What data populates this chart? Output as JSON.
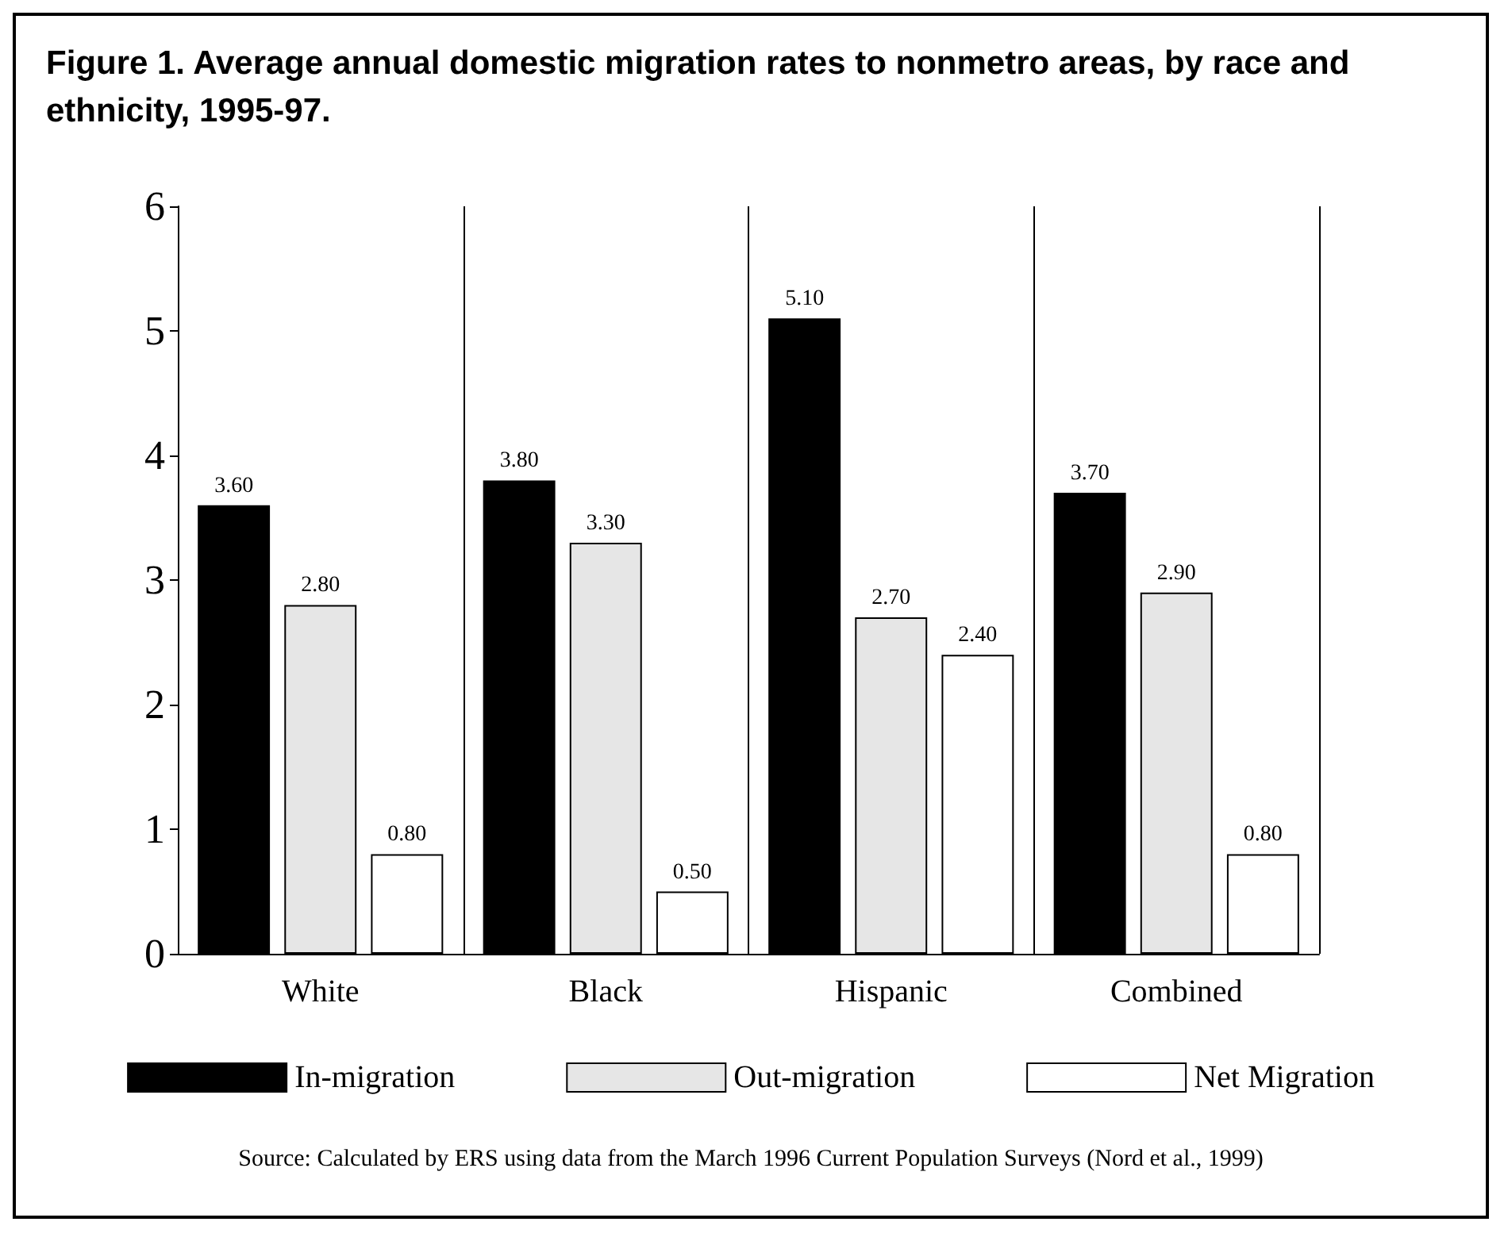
{
  "chart_data": {
    "type": "bar",
    "title": "Figure 1. Average annual domestic migration rates to nonmetro areas, by race and ethnicity, 1995-97.",
    "categories": [
      "White",
      "Black",
      "Hispanic",
      "Combined"
    ],
    "series": [
      {
        "name": "In-migration",
        "color": "#000000",
        "values": [
          3.6,
          3.8,
          5.1,
          3.7
        ],
        "value_labels": [
          "3.60",
          "3.80",
          "5.10",
          "3.70"
        ]
      },
      {
        "name": "Out-migration",
        "color": "#e6e6e6",
        "values": [
          2.8,
          3.3,
          2.7,
          2.9
        ],
        "value_labels": [
          "2.80",
          "3.30",
          "2.70",
          "2.90"
        ]
      },
      {
        "name": "Net Migration",
        "color": "#ffffff",
        "values": [
          0.8,
          0.5,
          2.4,
          0.8
        ],
        "value_labels": [
          "0.80",
          "0.50",
          "2.40",
          "0.80"
        ]
      }
    ],
    "ylim": [
      0,
      6
    ],
    "yticks": [
      0,
      1,
      2,
      3,
      4,
      5,
      6
    ],
    "grid": "x",
    "legend": "bottom",
    "annotations": [
      "Source: Calculated by ERS using data from the March 1996 Current Population Surveys (Nord et al., 1999)"
    ]
  }
}
